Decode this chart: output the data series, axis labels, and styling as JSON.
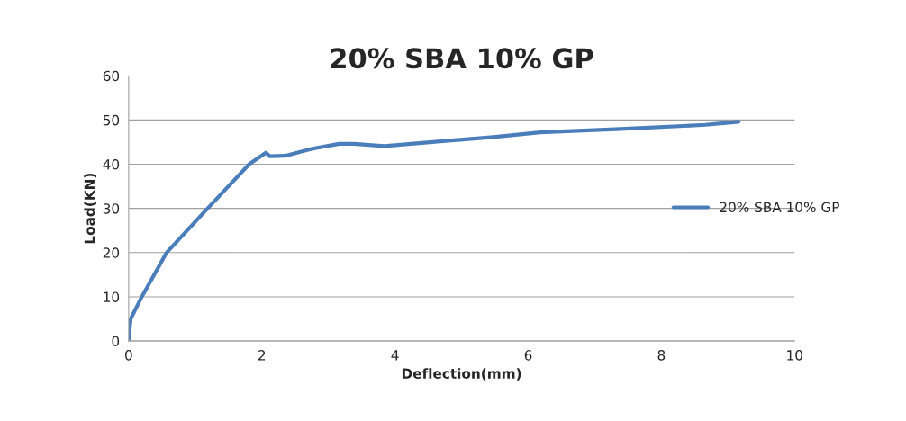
{
  "chart_data": {
    "type": "line",
    "title": "20% SBA 10% GP",
    "xlabel": "Deflection(mm)",
    "ylabel": "Load(KN)",
    "series": [
      {
        "name": "20% SBA 10% GP",
        "color": "#4a7ebb",
        "x": [
          0,
          0.03,
          0.19,
          0.57,
          1.18,
          1.81,
          2.06,
          2.12,
          2.35,
          2.76,
          3.16,
          3.38,
          3.84,
          5.51,
          6.18,
          7.31,
          8.66,
          9.16
        ],
        "values": [
          0.3,
          5,
          9.8,
          20,
          29.9,
          40,
          42.6,
          41.8,
          41.9,
          43.5,
          44.6,
          44.6,
          44.1,
          46.2,
          47.2,
          47.9,
          48.9,
          49.6
        ]
      }
    ],
    "xlim": [
      0,
      10
    ],
    "xticks": [
      0,
      2,
      4,
      6,
      8,
      10
    ],
    "ylim": [
      0,
      60
    ],
    "yticks": [
      0,
      10,
      20,
      30,
      40,
      50,
      60
    ],
    "grid": "y",
    "legend": "right",
    "marker": "none",
    "line_style": "solid"
  }
}
